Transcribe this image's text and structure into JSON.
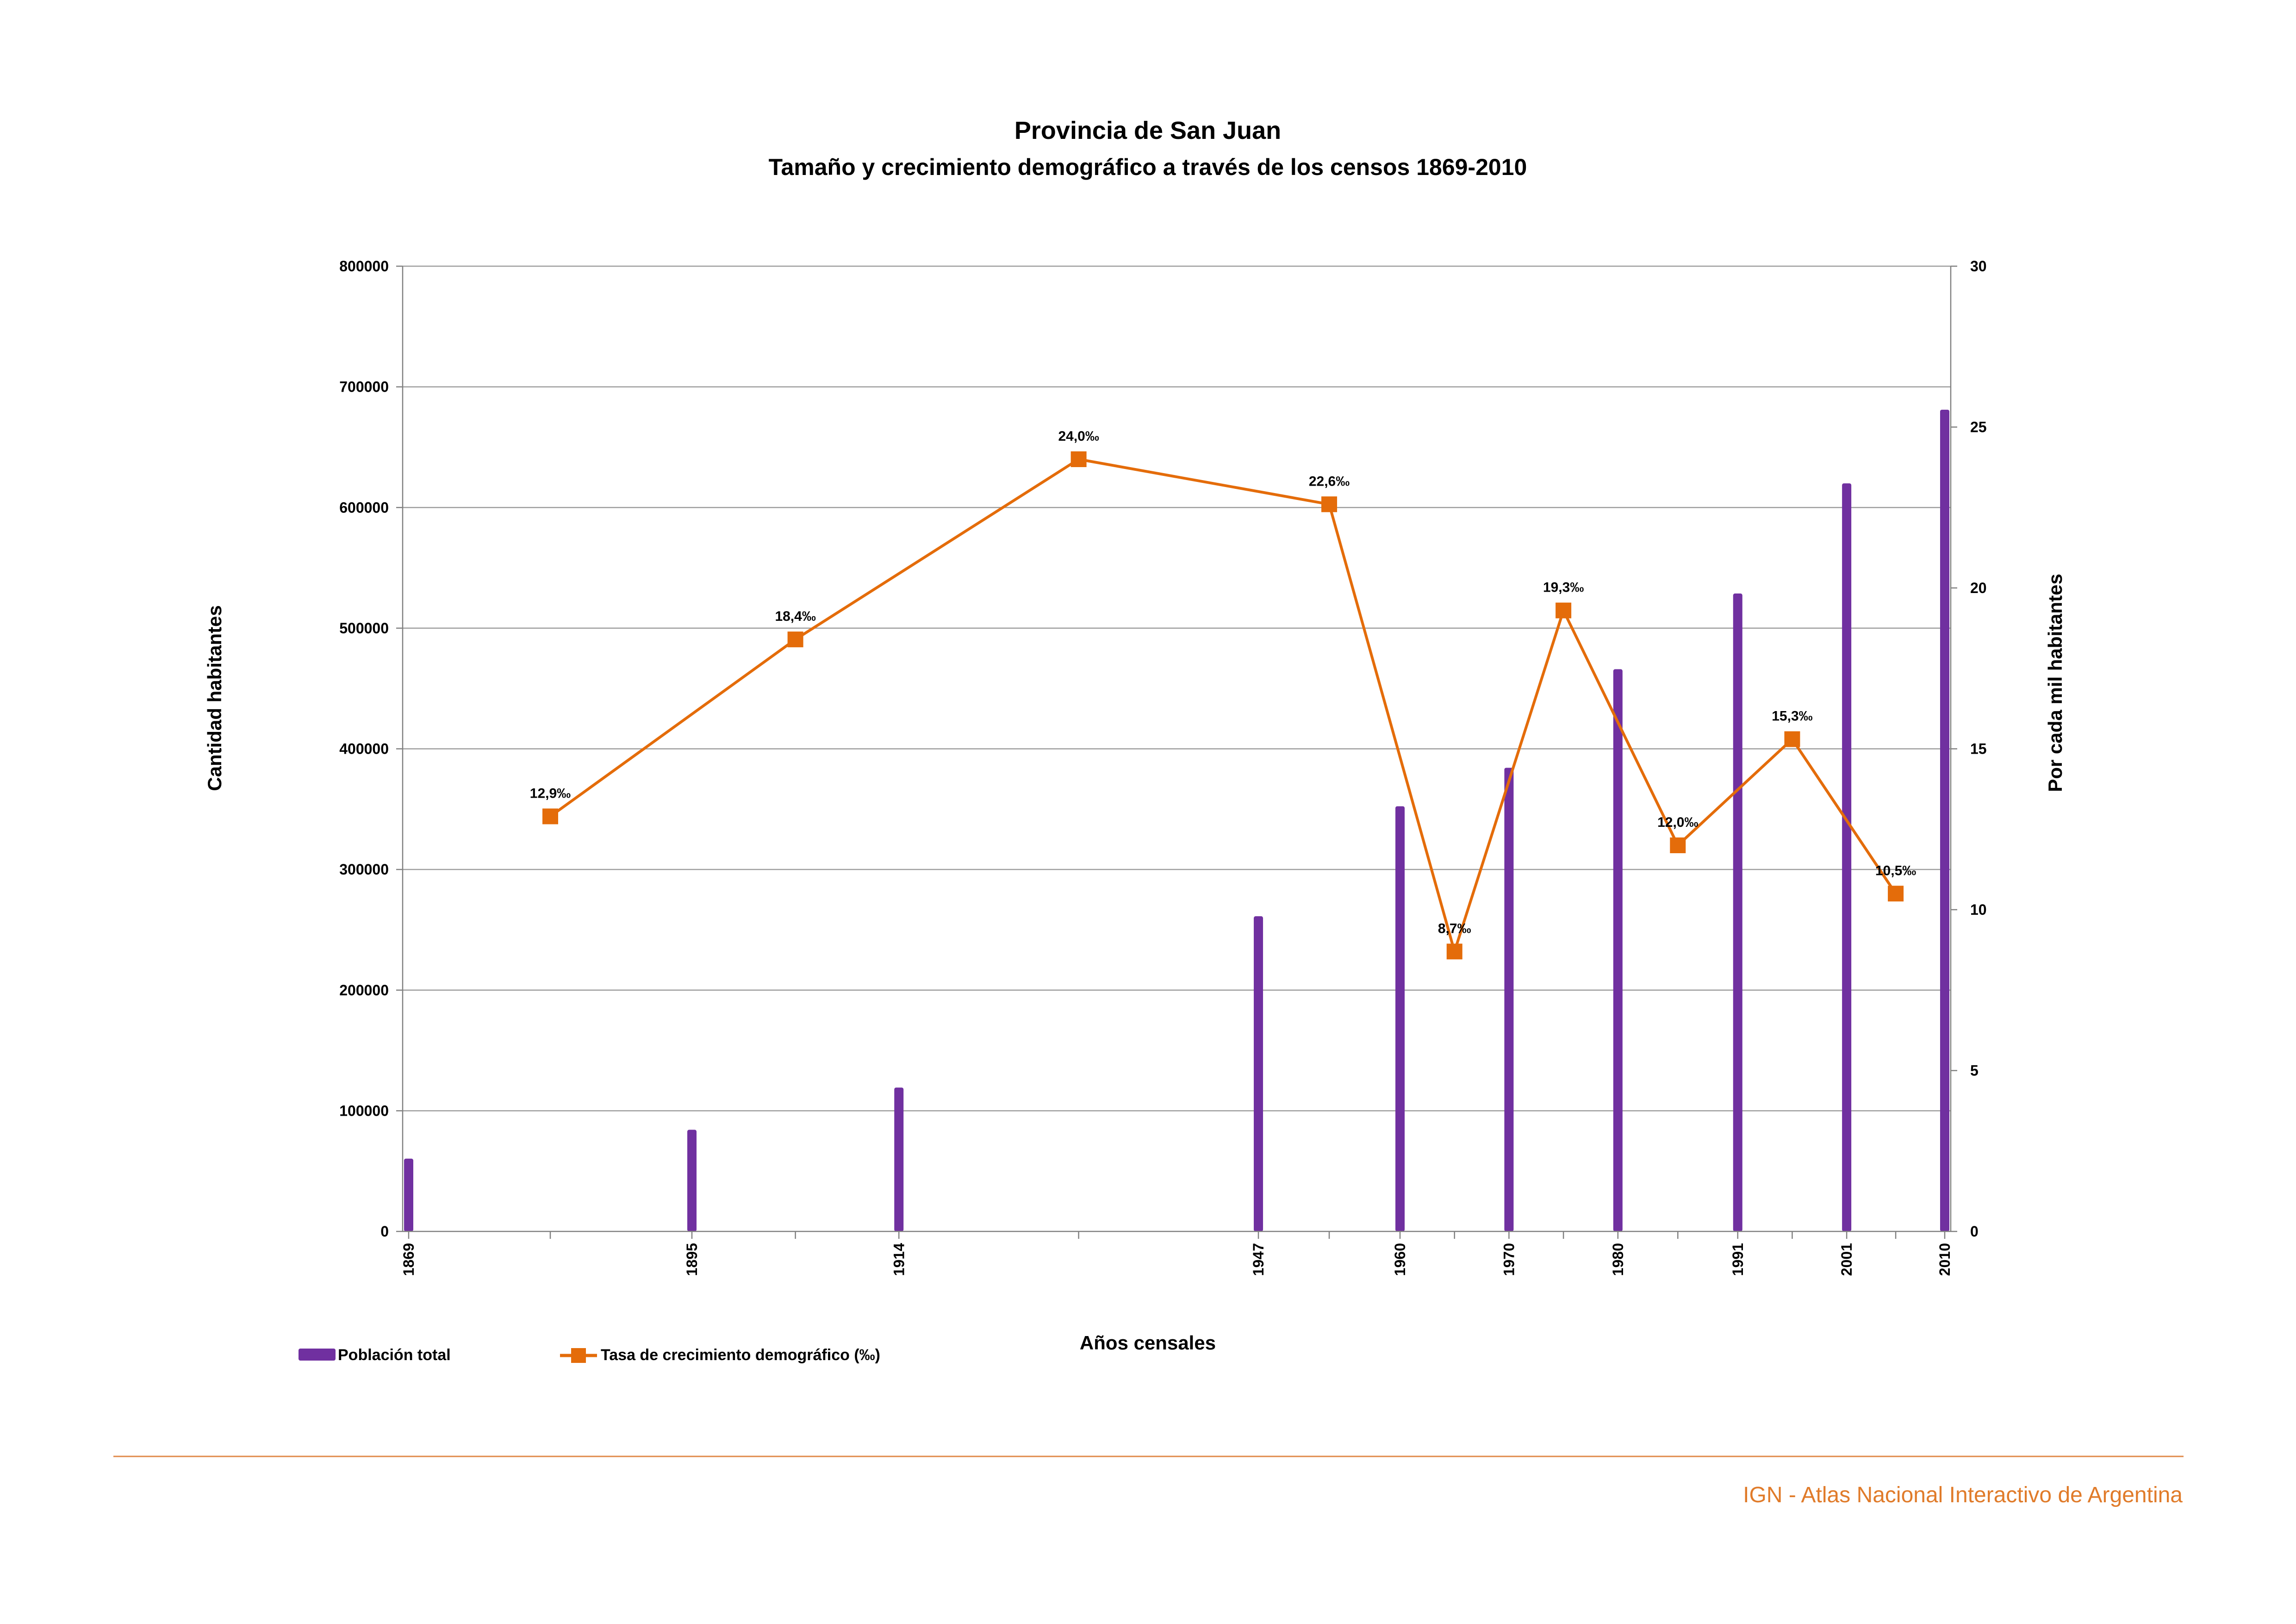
{
  "colors": {
    "bar": "#7030a0",
    "line": "#e46c0a",
    "grid": "#9e9e9e",
    "axis": "#808080",
    "footer_rule": "#e08a4a",
    "footer_text": "#e07b2a"
  },
  "footer": {
    "text": "IGN - Atlas Nacional Interactivo de Argentina"
  },
  "chart_data": {
    "type": "bar",
    "title": "Provincia de San Juan",
    "subtitle": "Tamaño y crecimiento demográfico a través de los censos 1869-2010",
    "xlabel": "Años censales",
    "ylabel_left": "Cantidad habitantes",
    "ylabel_right": "Por cada mil habitantes",
    "x_range": [
      1869,
      2010
    ],
    "ylim_left": [
      0,
      800000
    ],
    "yticks_left": [
      "0",
      "100000",
      "200000",
      "300000",
      "400000",
      "500000",
      "600000",
      "700000",
      "800000"
    ],
    "ylim_right": [
      0,
      30
    ],
    "yticks_right": [
      "0",
      "5",
      "10",
      "15",
      "20",
      "25",
      "30"
    ],
    "grid": true,
    "legend_position": "bottom-left",
    "series": [
      {
        "name": "Población total",
        "type": "bar",
        "axis": "left",
        "x": [
          1869,
          1895,
          1914,
          1947,
          1960,
          1970,
          1980,
          1991,
          2001,
          2010
        ],
        "x_labels": [
          "1869",
          "1895",
          "1914",
          "1947",
          "1960",
          "1970",
          "1980",
          "1991",
          "2001",
          "2010"
        ],
        "values": [
          60319,
          84251,
          119252,
          261229,
          352387,
          384284,
          465976,
          528715,
          620023,
          681055
        ]
      },
      {
        "name": "Tasa de crecimiento demográfico (‰)",
        "type": "line",
        "axis": "right",
        "x": [
          1882,
          1904.5,
          1930.5,
          1953.5,
          1965,
          1975,
          1985.5,
          1996,
          2005.5
        ],
        "values": [
          12.9,
          18.4,
          24.0,
          22.6,
          8.7,
          19.3,
          12.0,
          15.3,
          10.5
        ],
        "labels": [
          "12,9‰",
          "18,4‰",
          "24,0‰",
          "22,6‰",
          "8,7‰",
          "19,3‰",
          "12,0‰",
          "15,3‰",
          "10,5‰"
        ]
      }
    ]
  }
}
